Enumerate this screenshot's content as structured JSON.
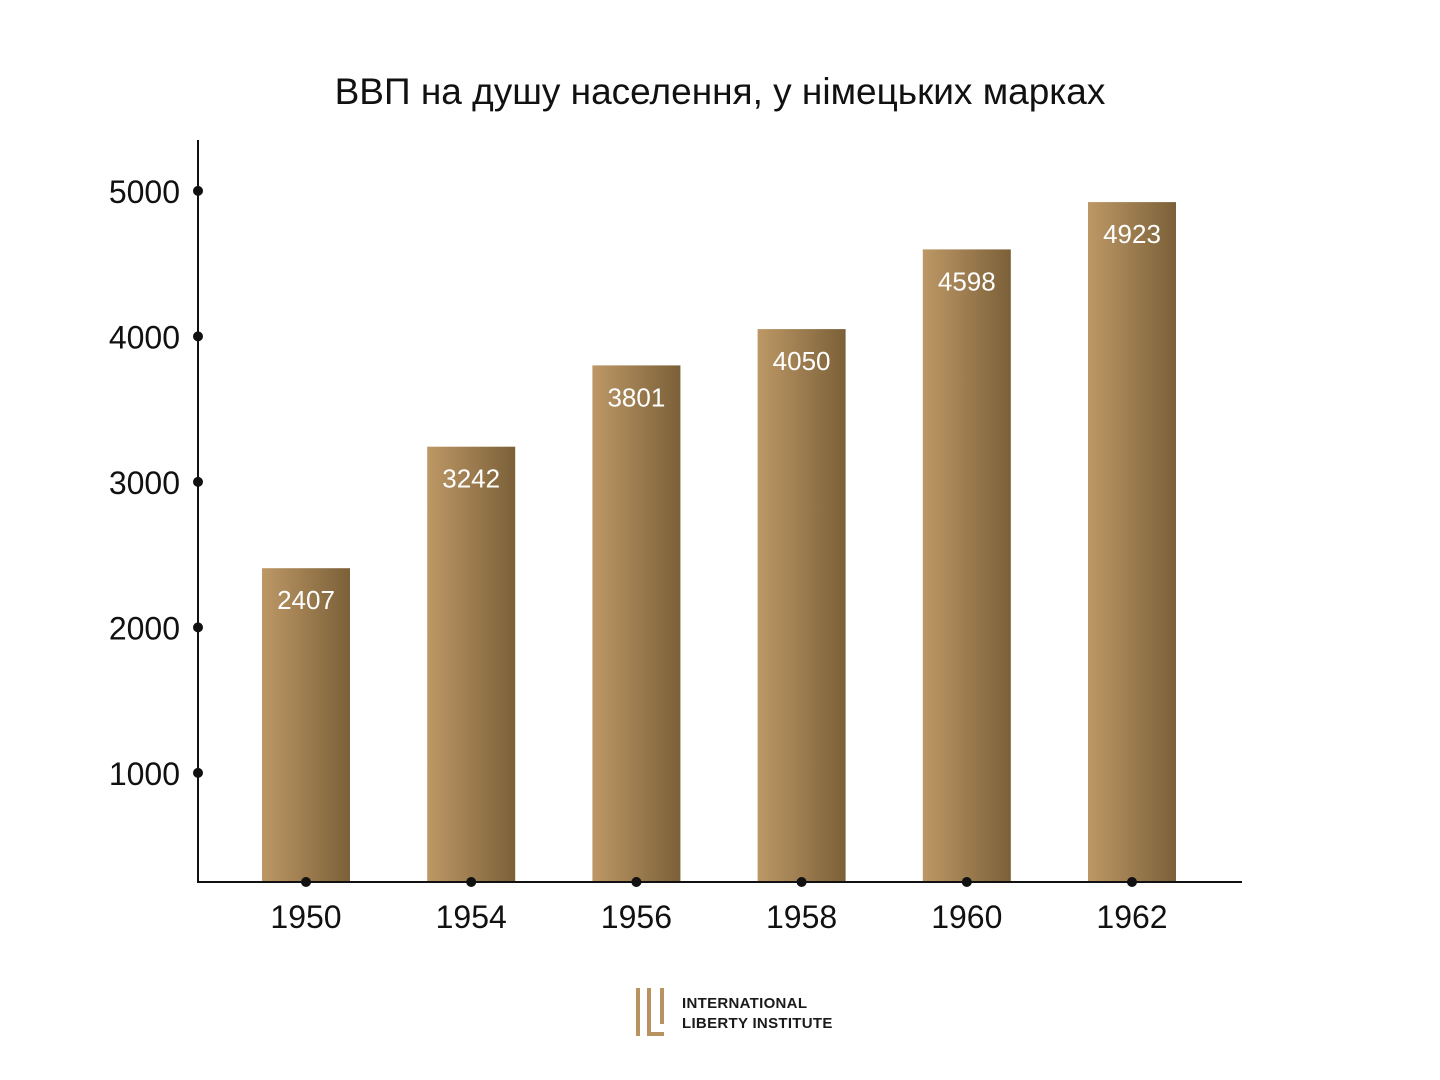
{
  "chart_data": {
    "type": "bar",
    "title": "ВВП на душу населення, у німецьких марках",
    "categories": [
      "1950",
      "1954",
      "1956",
      "1958",
      "1960",
      "1962"
    ],
    "values": [
      2407,
      3242,
      3801,
      4050,
      4598,
      4923
    ],
    "ylim": [
      250,
      5350
    ],
    "yticks": [
      "1000",
      "2000",
      "3000",
      "4000",
      "5000"
    ],
    "xlabel": "",
    "ylabel": "",
    "grid": false,
    "data_labels": true,
    "colors": {
      "bar_light": "#BD9866",
      "bar_dark": "#7B6038",
      "axis": "#111111",
      "label": "#ffffff"
    }
  },
  "logo": {
    "line1": "INTERNATIONAL",
    "line2": "LIBERTY INSTITUTE",
    "mark_color": "#B8935F"
  }
}
